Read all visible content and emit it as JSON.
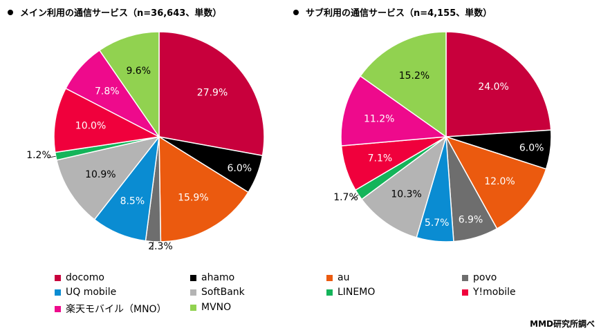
{
  "colors": {
    "docomo": "#c8003c",
    "ahamo": "#000000",
    "au": "#eb5a0f",
    "povo": "#6e6e6e",
    "uq": "#0a8cd2",
    "softbank": "#b4b4b4",
    "linemo": "#14b45a",
    "ymobile": "#f0003c",
    "rakuten": "#ee0a8c",
    "mvno": "#91d250"
  },
  "legend": [
    {
      "key": "docomo",
      "label": "docomo"
    },
    {
      "key": "ahamo",
      "label": "ahamo"
    },
    {
      "key": "au",
      "label": "au"
    },
    {
      "key": "povo",
      "label": "povo"
    },
    {
      "key": "uq",
      "label": "UQ mobile"
    },
    {
      "key": "softbank",
      "label": "SoftBank"
    },
    {
      "key": "linemo",
      "label": "LINEMO"
    },
    {
      "key": "ymobile",
      "label": "Y!mobile"
    },
    {
      "key": "rakuten",
      "label": "楽天モバイル（MNO）"
    },
    {
      "key": "mvno",
      "label": "MVNO"
    }
  ],
  "chart_data": [
    {
      "type": "pie",
      "title": "メイン利用の通信サービス（n=36,643、単数）",
      "slices": [
        {
          "key": "docomo",
          "value": 27.9,
          "label": "27.9%"
        },
        {
          "key": "ahamo",
          "value": 6.0,
          "label": "6.0%"
        },
        {
          "key": "au",
          "value": 15.9,
          "label": "15.9%"
        },
        {
          "key": "povo",
          "value": 2.3,
          "label": "2.3%"
        },
        {
          "key": "uq",
          "value": 8.5,
          "label": "8.5%"
        },
        {
          "key": "softbank",
          "value": 10.9,
          "label": "10.9%"
        },
        {
          "key": "linemo",
          "value": 1.2,
          "label": "1.2%"
        },
        {
          "key": "ymobile",
          "value": 10.0,
          "label": "10.0%"
        },
        {
          "key": "rakuten",
          "value": 7.8,
          "label": "7.8%"
        },
        {
          "key": "mvno",
          "value": 9.6,
          "label": "9.6%"
        }
      ]
    },
    {
      "type": "pie",
      "title": "サブ利用の通信サービス（n=4,155、単数）",
      "slices": [
        {
          "key": "docomo",
          "value": 24.0,
          "label": "24.0%"
        },
        {
          "key": "ahamo",
          "value": 6.0,
          "label": "6.0%"
        },
        {
          "key": "au",
          "value": 12.0,
          "label": "12.0%"
        },
        {
          "key": "povo",
          "value": 6.9,
          "label": "6.9%"
        },
        {
          "key": "uq",
          "value": 5.7,
          "label": "5.7%"
        },
        {
          "key": "softbank",
          "value": 10.3,
          "label": "10.3%"
        },
        {
          "key": "linemo",
          "value": 1.7,
          "label": "1.7%"
        },
        {
          "key": "ymobile",
          "value": 7.1,
          "label": "7.1%"
        },
        {
          "key": "rakuten",
          "value": 11.2,
          "label": "11.2%"
        },
        {
          "key": "mvno",
          "value": 15.2,
          "label": "15.2%"
        }
      ]
    }
  ],
  "credit": "MMD研究所調べ"
}
